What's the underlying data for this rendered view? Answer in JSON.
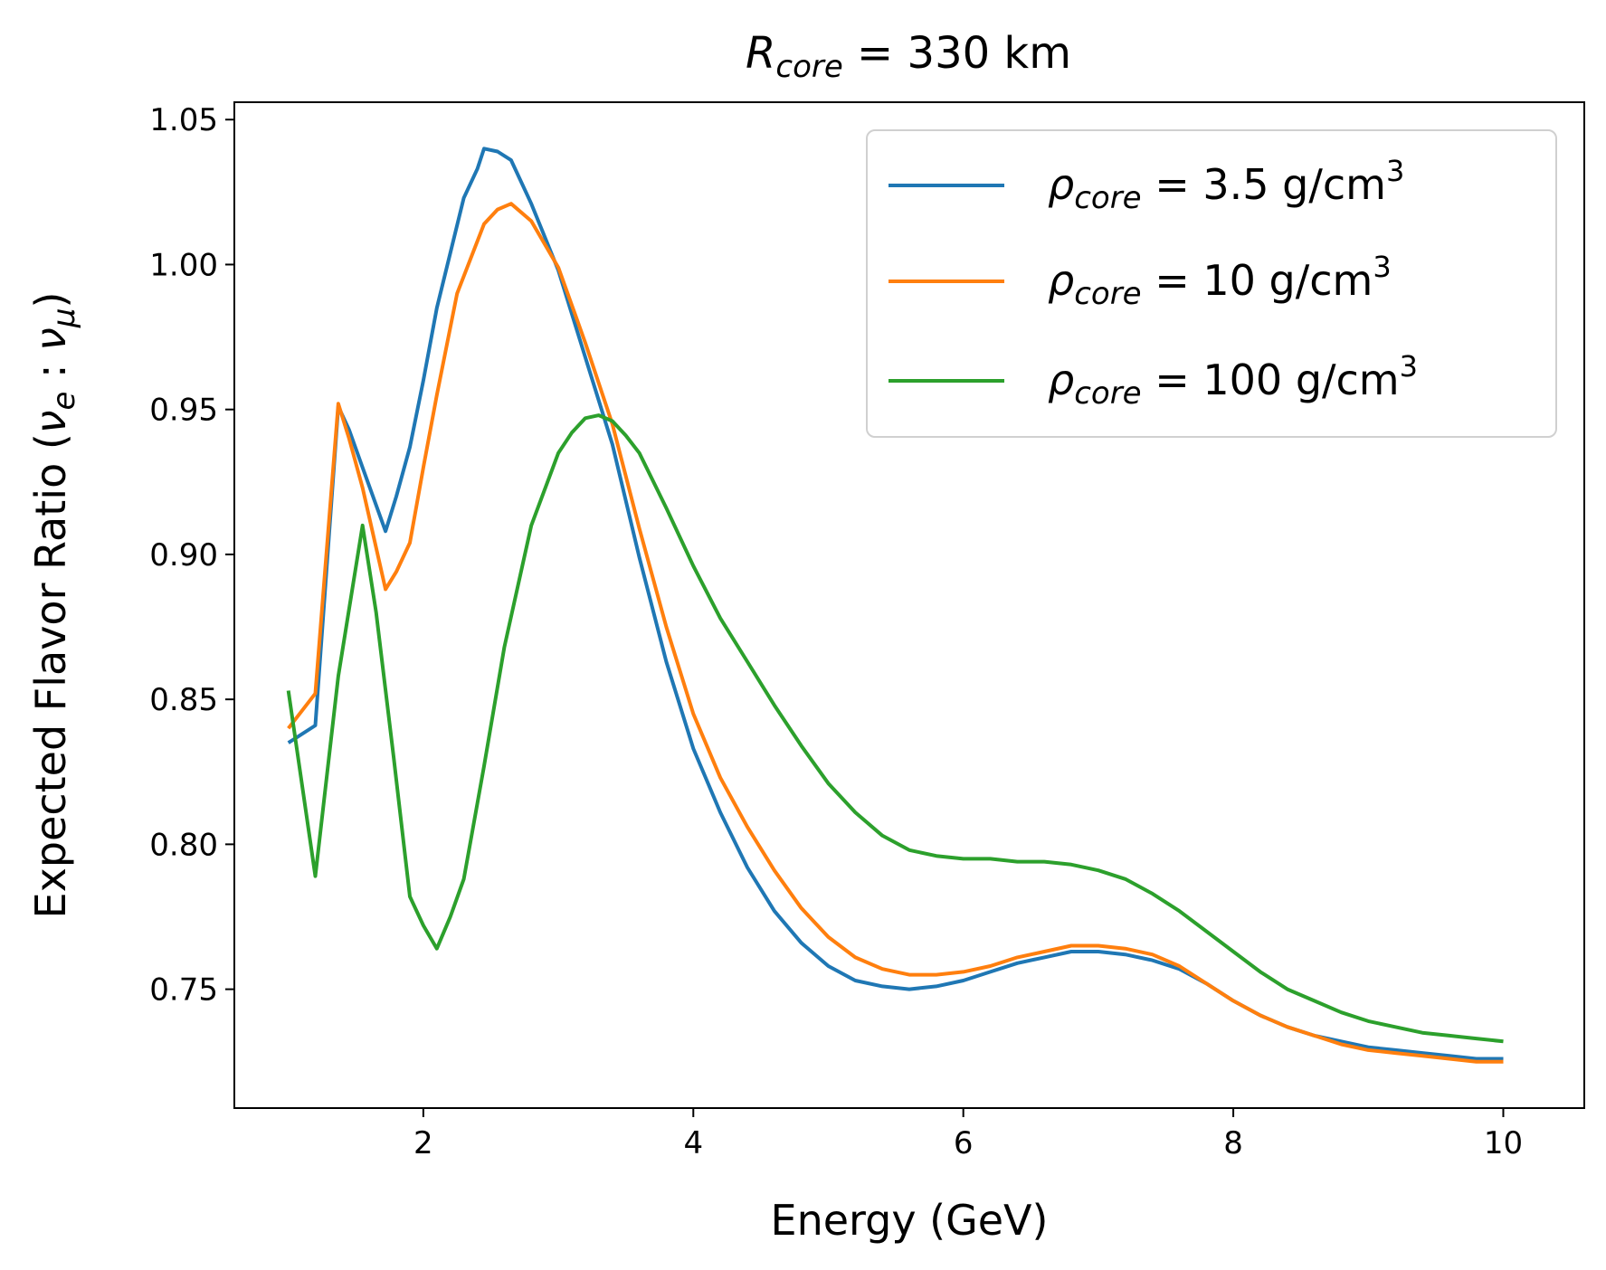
{
  "chart_data": {
    "type": "line",
    "title": {
      "symbol": "R",
      "subscript": "core",
      "rest": " = 330 km"
    },
    "xlabel": "Energy (GeV)",
    "ylabel": {
      "prefix": "Expected Flavor Ratio (",
      "nu": "ν",
      "sub_e": "e",
      "colon": " : ",
      "sub_mu": "μ",
      "suffix": ")"
    },
    "xlim": [
      0.6,
      10.6
    ],
    "ylim": [
      0.709,
      1.056
    ],
    "xticks": [
      2,
      4,
      6,
      8,
      10
    ],
    "yticks": [
      0.75,
      0.8,
      0.85,
      0.9,
      0.95,
      1.0,
      1.05
    ],
    "ytick_labels": [
      "0.75",
      "0.80",
      "0.85",
      "0.90",
      "0.95",
      "1.00",
      "1.05"
    ],
    "grid": false,
    "legend_position": "top-right",
    "series": [
      {
        "name": {
          "symbol": "ρ",
          "subscript": "core",
          "rest": " = 3.5 g/cm",
          "sup": "3"
        },
        "color": "#1f77b4",
        "points": [
          [
            1.0,
            0.835
          ],
          [
            1.2,
            0.841
          ],
          [
            1.37,
            0.951
          ],
          [
            1.45,
            0.943
          ],
          [
            1.55,
            0.93
          ],
          [
            1.72,
            0.908
          ],
          [
            1.8,
            0.92
          ],
          [
            1.9,
            0.937
          ],
          [
            2.0,
            0.96
          ],
          [
            2.1,
            0.985
          ],
          [
            2.3,
            1.023
          ],
          [
            2.4,
            1.033
          ],
          [
            2.45,
            1.04
          ],
          [
            2.55,
            1.039
          ],
          [
            2.65,
            1.036
          ],
          [
            2.8,
            1.021
          ],
          [
            3.0,
            0.998
          ],
          [
            3.2,
            0.968
          ],
          [
            3.4,
            0.938
          ],
          [
            3.6,
            0.899
          ],
          [
            3.8,
            0.863
          ],
          [
            4.0,
            0.833
          ],
          [
            4.2,
            0.811
          ],
          [
            4.4,
            0.792
          ],
          [
            4.6,
            0.777
          ],
          [
            4.8,
            0.766
          ],
          [
            5.0,
            0.758
          ],
          [
            5.2,
            0.753
          ],
          [
            5.4,
            0.751
          ],
          [
            5.6,
            0.75
          ],
          [
            5.8,
            0.751
          ],
          [
            6.0,
            0.753
          ],
          [
            6.2,
            0.756
          ],
          [
            6.4,
            0.759
          ],
          [
            6.6,
            0.761
          ],
          [
            6.8,
            0.763
          ],
          [
            7.0,
            0.763
          ],
          [
            7.2,
            0.762
          ],
          [
            7.4,
            0.76
          ],
          [
            7.6,
            0.757
          ],
          [
            7.8,
            0.752
          ],
          [
            8.0,
            0.746
          ],
          [
            8.2,
            0.741
          ],
          [
            8.4,
            0.737
          ],
          [
            8.6,
            0.734
          ],
          [
            8.8,
            0.732
          ],
          [
            9.0,
            0.73
          ],
          [
            9.2,
            0.729
          ],
          [
            9.4,
            0.728
          ],
          [
            9.6,
            0.727
          ],
          [
            9.8,
            0.726
          ],
          [
            10.0,
            0.726
          ]
        ]
      },
      {
        "name": {
          "symbol": "ρ",
          "subscript": "core",
          "rest": " = 10 g/cm",
          "sup": "3"
        },
        "color": "#ff7f0e",
        "points": [
          [
            1.0,
            0.84
          ],
          [
            1.2,
            0.852
          ],
          [
            1.37,
            0.952
          ],
          [
            1.45,
            0.94
          ],
          [
            1.55,
            0.923
          ],
          [
            1.72,
            0.888
          ],
          [
            1.8,
            0.894
          ],
          [
            1.9,
            0.904
          ],
          [
            2.0,
            0.93
          ],
          [
            2.1,
            0.955
          ],
          [
            2.25,
            0.99
          ],
          [
            2.45,
            1.014
          ],
          [
            2.55,
            1.019
          ],
          [
            2.65,
            1.021
          ],
          [
            2.8,
            1.015
          ],
          [
            3.0,
            0.999
          ],
          [
            3.2,
            0.973
          ],
          [
            3.4,
            0.945
          ],
          [
            3.6,
            0.909
          ],
          [
            3.8,
            0.875
          ],
          [
            4.0,
            0.845
          ],
          [
            4.2,
            0.823
          ],
          [
            4.4,
            0.806
          ],
          [
            4.6,
            0.791
          ],
          [
            4.8,
            0.778
          ],
          [
            5.0,
            0.768
          ],
          [
            5.2,
            0.761
          ],
          [
            5.4,
            0.757
          ],
          [
            5.6,
            0.755
          ],
          [
            5.8,
            0.755
          ],
          [
            6.0,
            0.756
          ],
          [
            6.2,
            0.758
          ],
          [
            6.4,
            0.761
          ],
          [
            6.6,
            0.763
          ],
          [
            6.8,
            0.765
          ],
          [
            7.0,
            0.765
          ],
          [
            7.2,
            0.764
          ],
          [
            7.4,
            0.762
          ],
          [
            7.6,
            0.758
          ],
          [
            7.8,
            0.752
          ],
          [
            8.0,
            0.746
          ],
          [
            8.2,
            0.741
          ],
          [
            8.4,
            0.737
          ],
          [
            8.6,
            0.734
          ],
          [
            8.8,
            0.731
          ],
          [
            9.0,
            0.729
          ],
          [
            9.2,
            0.728
          ],
          [
            9.4,
            0.727
          ],
          [
            9.6,
            0.726
          ],
          [
            9.8,
            0.725
          ],
          [
            10.0,
            0.725
          ]
        ]
      },
      {
        "name": {
          "symbol": "ρ",
          "subscript": "core",
          "rest": " = 100 g/cm",
          "sup": "3"
        },
        "color": "#2ca02c",
        "points": [
          [
            1.0,
            0.853
          ],
          [
            1.2,
            0.789
          ],
          [
            1.37,
            0.858
          ],
          [
            1.55,
            0.91
          ],
          [
            1.65,
            0.88
          ],
          [
            1.78,
            0.83
          ],
          [
            1.9,
            0.782
          ],
          [
            2.0,
            0.772
          ],
          [
            2.1,
            0.764
          ],
          [
            2.2,
            0.775
          ],
          [
            2.3,
            0.788
          ],
          [
            2.45,
            0.827
          ],
          [
            2.6,
            0.868
          ],
          [
            2.8,
            0.91
          ],
          [
            3.0,
            0.935
          ],
          [
            3.1,
            0.942
          ],
          [
            3.2,
            0.947
          ],
          [
            3.3,
            0.948
          ],
          [
            3.4,
            0.946
          ],
          [
            3.5,
            0.941
          ],
          [
            3.6,
            0.935
          ],
          [
            3.8,
            0.916
          ],
          [
            4.0,
            0.896
          ],
          [
            4.2,
            0.878
          ],
          [
            4.4,
            0.863
          ],
          [
            4.6,
            0.848
          ],
          [
            4.8,
            0.834
          ],
          [
            5.0,
            0.821
          ],
          [
            5.2,
            0.811
          ],
          [
            5.4,
            0.803
          ],
          [
            5.6,
            0.798
          ],
          [
            5.8,
            0.796
          ],
          [
            6.0,
            0.795
          ],
          [
            6.2,
            0.795
          ],
          [
            6.4,
            0.794
          ],
          [
            6.6,
            0.794
          ],
          [
            6.8,
            0.793
          ],
          [
            7.0,
            0.791
          ],
          [
            7.2,
            0.788
          ],
          [
            7.4,
            0.783
          ],
          [
            7.6,
            0.777
          ],
          [
            7.8,
            0.77
          ],
          [
            8.0,
            0.763
          ],
          [
            8.2,
            0.756
          ],
          [
            8.4,
            0.75
          ],
          [
            8.6,
            0.746
          ],
          [
            8.8,
            0.742
          ],
          [
            9.0,
            0.739
          ],
          [
            9.2,
            0.737
          ],
          [
            9.4,
            0.735
          ],
          [
            9.6,
            0.734
          ],
          [
            9.8,
            0.733
          ],
          [
            10.0,
            0.732
          ]
        ]
      }
    ]
  }
}
